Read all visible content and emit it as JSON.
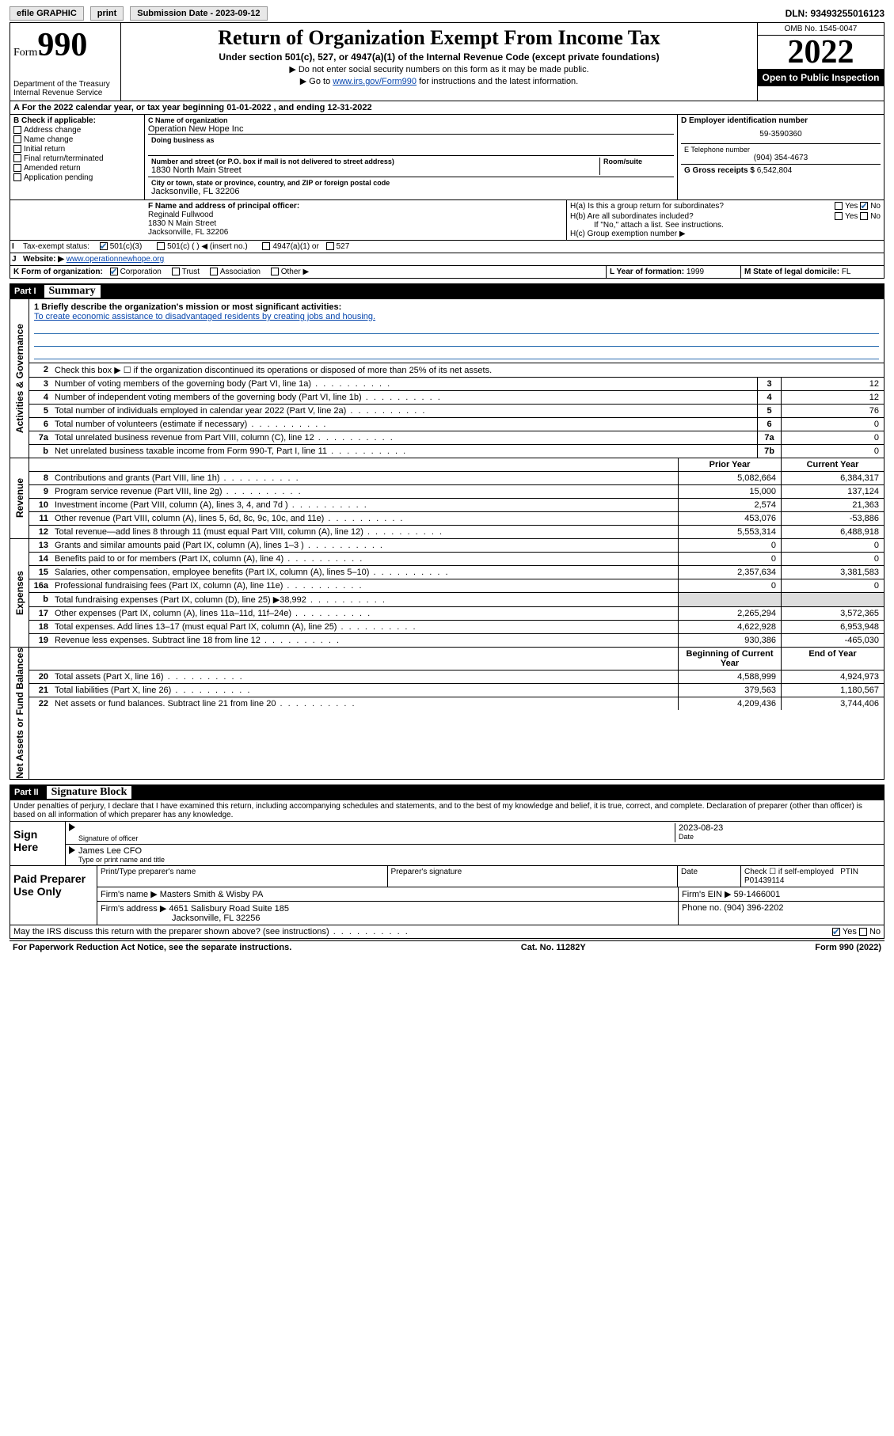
{
  "topbar": {
    "efile": "efile GRAPHIC",
    "print": "print",
    "subdate_lbl": "Submission Date - 2023-09-12",
    "dln": "DLN: 93493255016123"
  },
  "header": {
    "form_word": "Form",
    "form_num": "990",
    "dept": "Department of the Treasury\nInternal Revenue Service",
    "title": "Return of Organization Exempt From Income Tax",
    "sub": "Under section 501(c), 527, or 4947(a)(1) of the Internal Revenue Code (except private foundations)",
    "note1": "▶ Do not enter social security numbers on this form as it may be made public.",
    "note2_pre": "▶ Go to ",
    "note2_link": "www.irs.gov/Form990",
    "note2_post": " for instructions and the latest information.",
    "omb": "OMB No. 1545-0047",
    "year": "2022",
    "inspect": "Open to Public Inspection"
  },
  "taxyear": "A For the 2022 calendar year, or tax year beginning 01-01-2022   , and ending 12-31-2022",
  "checkB": {
    "hdr": "B Check if applicable:",
    "items": [
      "Address change",
      "Name change",
      "Initial return",
      "Final return/terminated",
      "Amended return",
      "Application pending"
    ]
  },
  "nameblock": {
    "c_lbl": "C Name of organization",
    "org": "Operation New Hope Inc",
    "dba_lbl": "Doing business as",
    "addr_lbl": "Number and street (or P.O. box if mail is not delivered to street address)",
    "room_lbl": "Room/suite",
    "addr": "1830 North Main Street",
    "city_lbl": "City or town, state or province, country, and ZIP or foreign postal code",
    "city": "Jacksonville, FL  32206"
  },
  "right": {
    "d_lbl": "D Employer identification number",
    "ein": "59-3590360",
    "e_lbl": "E Telephone number",
    "phone": "(904) 354-4673",
    "g_lbl": "G Gross receipts $",
    "g_val": "6,542,804"
  },
  "fblock": {
    "f_lbl": "F Name and address of principal officer:",
    "name": "Reginald Fullwood",
    "addr": "1830 N Main Street",
    "city": "Jacksonville, FL  32206"
  },
  "hblock": {
    "ha": "H(a)  Is this a group return for subordinates?",
    "hb": "H(b)  Are all subordinates included?",
    "hb_note": "If \"No,\" attach a list. See instructions.",
    "hc": "H(c)  Group exemption number ▶",
    "yes": "Yes",
    "no": "No"
  },
  "i_row": {
    "lbl": "Tax-exempt status:",
    "opts": [
      "501(c)(3)",
      "501(c) (  ) ◀ (insert no.)",
      "4947(a)(1) or",
      "527"
    ]
  },
  "j_row": {
    "lbl": "Website: ▶",
    "val": "www.operationnewhope.org"
  },
  "k_row": {
    "lbl": "K Form of organization:",
    "opts": [
      "Corporation",
      "Trust",
      "Association",
      "Other ▶"
    ]
  },
  "l_row": {
    "lbl": "L Year of formation:",
    "val": "1999"
  },
  "m_row": {
    "lbl": "M State of legal domicile:",
    "val": "FL"
  },
  "part1": {
    "num": "Part I",
    "title": "Summary"
  },
  "summary": {
    "q1_lbl": "1  Briefly describe the organization's mission or most significant activities:",
    "q1_val": "To create economic assistance to disadvantaged residents by creating jobs and housing.",
    "q2": "Check this box ▶ ☐  if the organization discontinued its operations or disposed of more than 25% of its net assets.",
    "rows_ag": [
      {
        "n": "3",
        "d": "Number of voting members of the governing body (Part VI, line 1a)",
        "bx": "3",
        "v": "12"
      },
      {
        "n": "4",
        "d": "Number of independent voting members of the governing body (Part VI, line 1b)",
        "bx": "4",
        "v": "12"
      },
      {
        "n": "5",
        "d": "Total number of individuals employed in calendar year 2022 (Part V, line 2a)",
        "bx": "5",
        "v": "76"
      },
      {
        "n": "6",
        "d": "Total number of volunteers (estimate if necessary)",
        "bx": "6",
        "v": "0"
      },
      {
        "n": "7a",
        "d": "Total unrelated business revenue from Part VIII, column (C), line 12",
        "bx": "7a",
        "v": "0"
      },
      {
        "n": "b",
        "d": "Net unrelated business taxable income from Form 990-T, Part I, line 11",
        "bx": "7b",
        "v": "0"
      }
    ],
    "col_prior": "Prior Year",
    "col_curr": "Current Year",
    "rows_rev": [
      {
        "n": "8",
        "d": "Contributions and grants (Part VIII, line 1h)",
        "p": "5,082,664",
        "c": "6,384,317"
      },
      {
        "n": "9",
        "d": "Program service revenue (Part VIII, line 2g)",
        "p": "15,000",
        "c": "137,124"
      },
      {
        "n": "10",
        "d": "Investment income (Part VIII, column (A), lines 3, 4, and 7d )",
        "p": "2,574",
        "c": "21,363"
      },
      {
        "n": "11",
        "d": "Other revenue (Part VIII, column (A), lines 5, 6d, 8c, 9c, 10c, and 11e)",
        "p": "453,076",
        "c": "-53,886"
      },
      {
        "n": "12",
        "d": "Total revenue—add lines 8 through 11 (must equal Part VIII, column (A), line 12)",
        "p": "5,553,314",
        "c": "6,488,918"
      }
    ],
    "rows_exp": [
      {
        "n": "13",
        "d": "Grants and similar amounts paid (Part IX, column (A), lines 1–3 )",
        "p": "0",
        "c": "0"
      },
      {
        "n": "14",
        "d": "Benefits paid to or for members (Part IX, column (A), line 4)",
        "p": "0",
        "c": "0"
      },
      {
        "n": "15",
        "d": "Salaries, other compensation, employee benefits (Part IX, column (A), lines 5–10)",
        "p": "2,357,634",
        "c": "3,381,583"
      },
      {
        "n": "16a",
        "d": "Professional fundraising fees (Part IX, column (A), line 11e)",
        "p": "0",
        "c": "0"
      },
      {
        "n": "b",
        "d": "Total fundraising expenses (Part IX, column (D), line 25) ▶38,992",
        "p": "",
        "c": "",
        "shade": true
      },
      {
        "n": "17",
        "d": "Other expenses (Part IX, column (A), lines 11a–11d, 11f–24e)",
        "p": "2,265,294",
        "c": "3,572,365"
      },
      {
        "n": "18",
        "d": "Total expenses. Add lines 13–17 (must equal Part IX, column (A), line 25)",
        "p": "4,622,928",
        "c": "6,953,948"
      },
      {
        "n": "19",
        "d": "Revenue less expenses. Subtract line 18 from line 12",
        "p": "930,386",
        "c": "-465,030"
      }
    ],
    "col_beg": "Beginning of Current Year",
    "col_end": "End of Year",
    "rows_na": [
      {
        "n": "20",
        "d": "Total assets (Part X, line 16)",
        "p": "4,588,999",
        "c": "4,924,973"
      },
      {
        "n": "21",
        "d": "Total liabilities (Part X, line 26)",
        "p": "379,563",
        "c": "1,180,567"
      },
      {
        "n": "22",
        "d": "Net assets or fund balances. Subtract line 21 from line 20",
        "p": "4,209,436",
        "c": "3,744,406"
      }
    ],
    "vtab_ag": "Activities & Governance",
    "vtab_rev": "Revenue",
    "vtab_exp": "Expenses",
    "vtab_na": "Net Assets or Fund Balances"
  },
  "part2": {
    "num": "Part II",
    "title": "Signature Block"
  },
  "sig": {
    "decl": "Under penalties of perjury, I declare that I have examined this return, including accompanying schedules and statements, and to the best of my knowledge and belief, it is true, correct, and complete. Declaration of preparer (other than officer) is based on all information of which preparer has any knowledge.",
    "sign_here": "Sign Here",
    "sig_officer": "Signature of officer",
    "date_lbl": "Date",
    "date_val": "2023-08-23",
    "officer_name": "James Lee CFO",
    "type_lbl": "Type or print name and title",
    "paid_lbl": "Paid Preparer Use Only",
    "prep_name_lbl": "Print/Type preparer's name",
    "prep_sig_lbl": "Preparer's signature",
    "check_lbl": "Check ☐ if self-employed",
    "ptin_lbl": "PTIN",
    "ptin": "P01439114",
    "firm_name_lbl": "Firm's name  ▶",
    "firm_name": "Masters Smith & Wisby PA",
    "firm_ein_lbl": "Firm's EIN ▶",
    "firm_ein": "59-1466001",
    "firm_addr_lbl": "Firm's address ▶",
    "firm_addr": "4651 Salisbury Road Suite 185",
    "firm_city": "Jacksonville, FL  32256",
    "phone_lbl": "Phone no.",
    "phone": "(904) 396-2202",
    "discuss": "May the IRS discuss this return with the preparer shown above? (see instructions)",
    "yes": "Yes",
    "no": "No"
  },
  "footer": {
    "pra": "For Paperwork Reduction Act Notice, see the separate instructions.",
    "cat": "Cat. No. 11282Y",
    "form": "Form 990 (2022)"
  }
}
